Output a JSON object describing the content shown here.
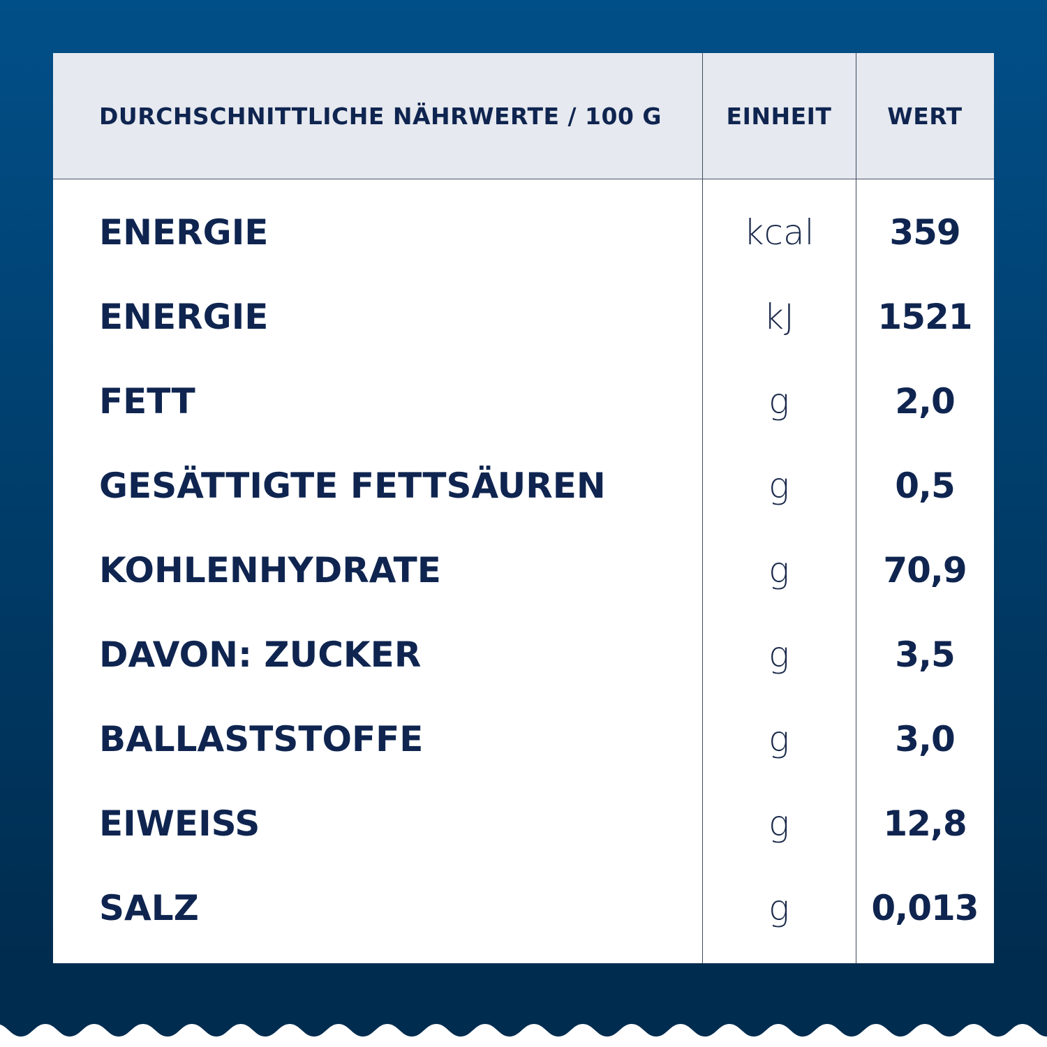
{
  "colors": {
    "background_top": "#014f88",
    "background_bottom": "#002c4f",
    "header_bg": "#e6e9ef",
    "text": "#0f2550"
  },
  "header": {
    "nutrient": "DURCHSCHNITTLICHE  NÄHRWERTE / 100 G",
    "unit": "EINHEIT",
    "value": "WERT"
  },
  "rows": [
    {
      "name": "ENERGIE",
      "unit": "kcal",
      "value": "359"
    },
    {
      "name": "ENERGIE",
      "unit": "kJ",
      "value": "1521"
    },
    {
      "name": "FETT",
      "unit": "g",
      "value": "2,0"
    },
    {
      "name": "GESÄTTIGTE  FETTSÄUREN",
      "unit": "g",
      "value": "0,5"
    },
    {
      "name": "KOHLENHYDRATE",
      "unit": "g",
      "value": "70,9"
    },
    {
      "name": "DAVON:  ZUCKER",
      "unit": "g",
      "value": "3,5"
    },
    {
      "name": "BALLASTSTOFFE",
      "unit": "g",
      "value": "3,0"
    },
    {
      "name": "EIWEISS",
      "unit": "g",
      "value": "12,8"
    },
    {
      "name": "SALZ",
      "unit": "g",
      "value": "0,013"
    }
  ]
}
